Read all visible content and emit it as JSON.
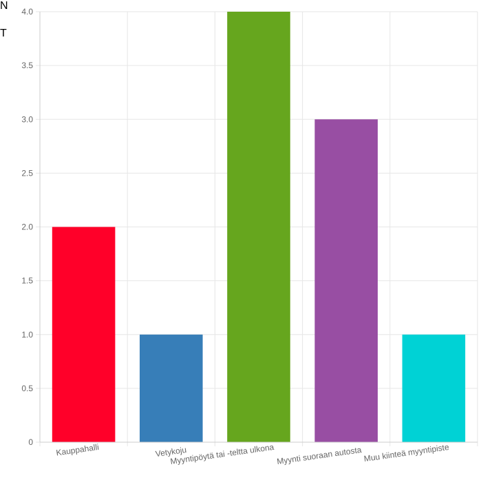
{
  "background_text": [
    "N",
    "T"
  ],
  "chart_data": {
    "type": "bar",
    "categories": [
      "Kauppahalli",
      "Vetykoju",
      "Myyntipöytä tai -teltta ulkona",
      "Myynti suoraan autosta",
      "Muu kiinteä myyntipiste"
    ],
    "values": [
      2,
      1,
      4,
      3,
      1
    ],
    "colors": [
      "#ff0029",
      "#377eb8",
      "#66a61e",
      "#984ea3",
      "#00d2d5"
    ],
    "ylim": [
      0,
      4
    ],
    "yticks": [
      0,
      0.5,
      1,
      1.5,
      2,
      2.5,
      3,
      3.5,
      4
    ],
    "ytick_labels": [
      "0",
      "0.5",
      "1.0",
      "1.5",
      "2.0",
      "2.5",
      "3.0",
      "3.5",
      "4.0"
    ],
    "grid": true,
    "title": "",
    "xlabel": "",
    "ylabel": ""
  }
}
